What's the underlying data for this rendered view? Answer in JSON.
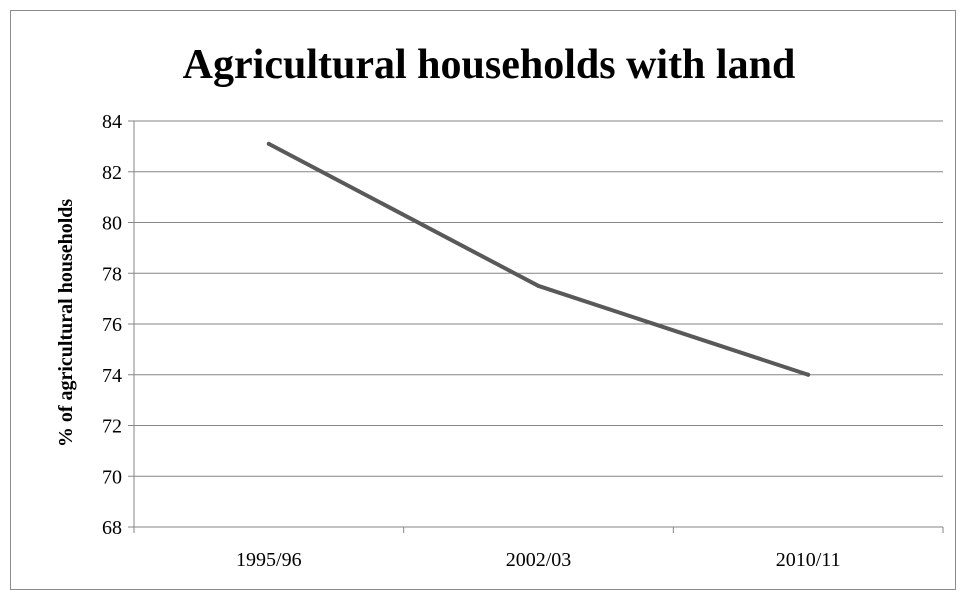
{
  "chart_data": {
    "type": "line",
    "title": "Agricultural households with land",
    "xlabel": "",
    "ylabel": "% of agricultural households",
    "categories": [
      "1995/96",
      "2002/03",
      "2010/11"
    ],
    "series": [
      {
        "values": [
          83.1,
          77.5,
          74.0
        ]
      }
    ],
    "ylim": [
      68,
      84
    ],
    "yticks": [
      "68",
      "70",
      "72",
      "74",
      "76",
      "78",
      "80",
      "82",
      "84"
    ],
    "grid": true,
    "legend": "none",
    "colors": {
      "line": "#595959",
      "grid": "#868686",
      "axis": "#868686"
    }
  }
}
